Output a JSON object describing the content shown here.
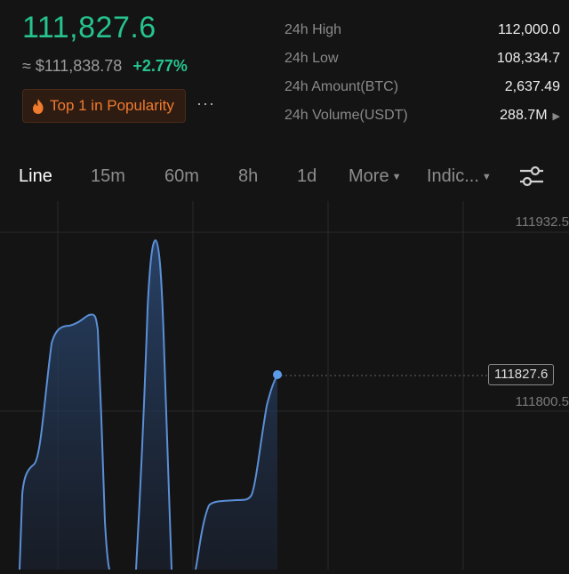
{
  "ticker": {
    "last_price": "111,827.6",
    "fiat_price": "≈ $111,838.78",
    "change_pct": "+2.77%",
    "popularity_badge": "Top 1 in Popularity",
    "popularity_icon": "fire-icon",
    "more_icon": "more-dots-icon"
  },
  "stats": [
    {
      "label": "24h High",
      "value": "112,000.0"
    },
    {
      "label": "24h Low",
      "value": "108,334.7"
    },
    {
      "label": "24h Amount(BTC)",
      "value": "2,637.49"
    },
    {
      "label": "24h Volume(USDT)",
      "value": "288.7M",
      "icon": "chevron-right-icon"
    }
  ],
  "timeframes": {
    "line": "Line",
    "m15": "15m",
    "m60": "60m",
    "h8": "8h",
    "d1": "1d",
    "more": "More",
    "indicators": "Indic...",
    "active": "Line",
    "settings_icon": "sliders-icon"
  },
  "chart_data": {
    "type": "area",
    "y_tick_labels": [
      "111932.5",
      "111800.5"
    ],
    "current_price_label": "111827.6",
    "colors": {
      "line": "#5b8fd6",
      "fill_top": "#2b4a75",
      "grid": "#2a2a2a",
      "up": "#26c38f"
    }
  }
}
